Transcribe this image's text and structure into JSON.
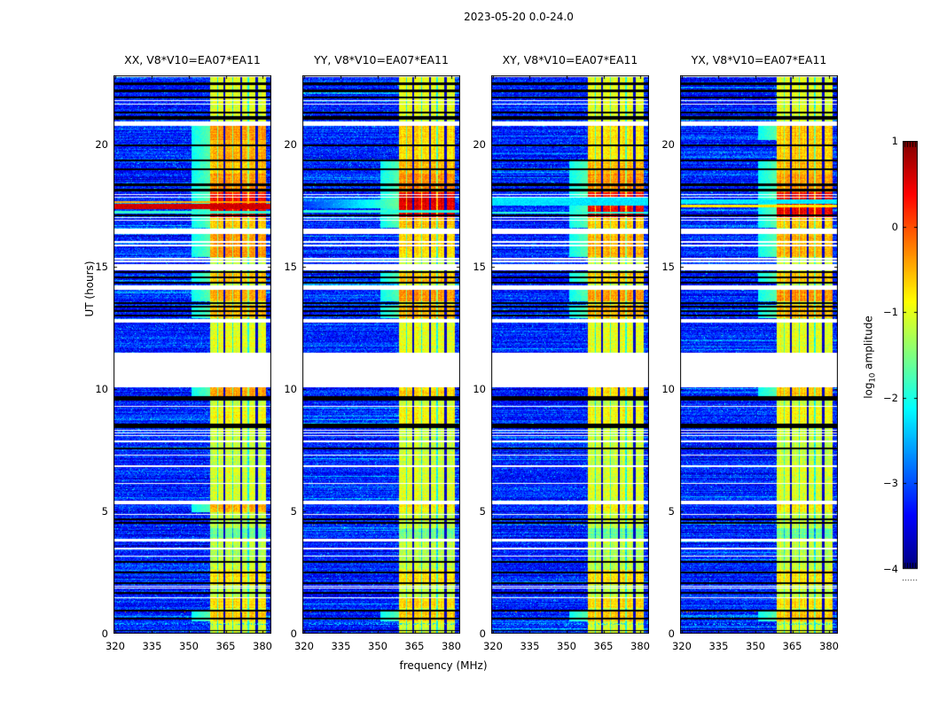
{
  "figure": {
    "title": "2023-05-20 0.0-24.0",
    "xlabel": "frequency (MHz)",
    "ylabel": "UT (hours)"
  },
  "panels": [
    {
      "pol": "XX",
      "title": "XX, V8*V10=EA07*EA11"
    },
    {
      "pol": "YY",
      "title": "YY, V8*V10=EA07*EA11"
    },
    {
      "pol": "XY",
      "title": "XY, V8*V10=EA07*EA11"
    },
    {
      "pol": "YX",
      "title": "YX, V8*V10=EA07*EA11"
    }
  ],
  "colorbar": {
    "label_pre": "log",
    "label_sub": "10",
    "label_post": " amplitude",
    "ticks": [
      "1",
      "0",
      "−1",
      "−2",
      "−3",
      "−4"
    ],
    "tick_values": [
      1,
      0,
      -1,
      -2,
      -3,
      -4
    ],
    "vmin": -4,
    "vmax": 1,
    "colormap": "jet"
  },
  "chart_data": {
    "type": "heatmap",
    "title": "2023-05-20 0.0-24.0",
    "xlabel": "frequency (MHz)",
    "ylabel": "UT (hours)",
    "value_label": "log10 amplitude",
    "colormap": "jet",
    "value_range": [
      -4,
      1
    ],
    "x_range_mhz": [
      319.3,
      383.6
    ],
    "x_ticks_mhz": [
      320,
      335,
      350,
      365,
      380
    ],
    "y_range_hours": [
      0,
      22.83
    ],
    "y_ticks_hours": [
      0,
      5,
      10,
      15,
      20
    ],
    "background_level": -3.35,
    "rfi_band": {
      "f_start_mhz": 358.6,
      "f_end_mhz": 381.4,
      "divider_freqs_mhz": [
        364.3,
        371.1,
        377.5
      ],
      "inner_line_freqs_mhz": [
        361.5,
        367.6,
        374.0
      ],
      "default_level": -1.15
    },
    "band_profile_common": [
      [
        21.2,
        22.83,
        -1.0
      ],
      [
        18.8,
        19.4,
        -0.55
      ],
      [
        18.35,
        18.8,
        -0.35
      ],
      [
        18.05,
        18.35,
        -0.3
      ],
      [
        16.6,
        17.05,
        -0.6
      ],
      [
        14.3,
        14.8,
        -0.6
      ],
      [
        12.9,
        13.45,
        -0.5
      ],
      [
        10.1,
        12.72,
        -1.0
      ],
      [
        8.6,
        9.3,
        -0.9
      ],
      [
        7.3,
        7.85,
        -1.15
      ],
      [
        5.5,
        6.8,
        -1.05
      ],
      [
        3.9,
        4.3,
        -1.6
      ],
      [
        3.0,
        3.5,
        -1.25
      ],
      [
        2.0,
        2.6,
        -0.75
      ],
      [
        1.05,
        1.45,
        -0.7
      ],
      [
        0.5,
        0.95,
        -0.6
      ],
      [
        0.0,
        0.5,
        -1.1
      ]
    ],
    "band_profile_by_panel": {
      "XX": [
        [
          20.2,
          20.75,
          -0.35
        ],
        [
          19.4,
          20.2,
          -0.5
        ],
        [
          17.05,
          18.05,
          0.35
        ],
        [
          15.4,
          16.34,
          -0.35
        ],
        [
          13.6,
          14.06,
          -0.45
        ],
        [
          9.71,
          10.07,
          -0.4
        ],
        [
          4.95,
          5.29,
          -0.5
        ]
      ],
      "YY": [
        [
          20.2,
          20.75,
          -0.7
        ],
        [
          19.4,
          20.2,
          -0.75
        ],
        [
          17.05,
          18.05,
          0.5
        ],
        [
          15.4,
          16.34,
          -0.7
        ],
        [
          13.6,
          14.06,
          -0.35
        ],
        [
          9.71,
          10.07,
          -0.7
        ],
        [
          4.95,
          5.29,
          -0.85
        ]
      ],
      "XY": [
        [
          20.2,
          20.75,
          -0.75
        ],
        [
          19.4,
          20.2,
          -0.8
        ],
        [
          17.05,
          18.05,
          0.3
        ],
        [
          15.4,
          16.34,
          -0.5
        ],
        [
          13.6,
          14.06,
          -0.4
        ],
        [
          9.71,
          10.07,
          -0.7
        ],
        [
          4.95,
          5.29,
          -0.85
        ]
      ],
      "YX": [
        [
          20.2,
          20.75,
          -0.6
        ],
        [
          19.4,
          20.2,
          -0.65
        ],
        [
          17.05,
          18.05,
          0.45
        ],
        [
          15.4,
          16.34,
          -0.5
        ],
        [
          13.6,
          14.06,
          -0.35
        ],
        [
          9.71,
          10.07,
          -0.6
        ],
        [
          4.95,
          5.29,
          -0.8
        ]
      ]
    },
    "events_by_panel": {
      "XX": [
        {
          "hours": [
            17.36,
            17.57
          ],
          "level": 0.6
        },
        {
          "hours": [
            17.61,
            17.68
          ],
          "level": -0.45
        },
        {
          "hours": [
            17.17,
            17.28
          ],
          "level": -1.9
        }
      ],
      "YY": [
        {
          "hours": [
            17.21,
            17.32
          ],
          "level": -1.95
        },
        {
          "hours": [
            17.39,
            17.75
          ],
          "type": "wedge"
        }
      ],
      "XY": [
        {
          "hours": [
            17.5,
            17.83
          ],
          "level": -2.25
        },
        {
          "hours": [
            17.17,
            17.25
          ],
          "level": -1.95
        }
      ],
      "YX": [
        {
          "hours": [
            17.43,
            17.54
          ],
          "level": -0.75
        },
        {
          "hours": [
            17.57,
            17.75
          ],
          "level": -2.2
        }
      ]
    },
    "flagged_rows_hours": [
      [
        22.43,
        22.54
      ],
      [
        22.14,
        22.25
      ],
      [
        21.88,
        21.96
      ],
      [
        21.27,
        21.34
      ],
      [
        21.01,
        21.16
      ],
      [
        19.93,
        20.0
      ],
      [
        19.31,
        19.38
      ],
      [
        18.95,
        19.02
      ],
      [
        18.3,
        18.41
      ],
      [
        18.08,
        18.19
      ],
      [
        17.07,
        17.14
      ],
      [
        14.75,
        14.82
      ],
      [
        14.53,
        14.6
      ],
      [
        14.31,
        14.38
      ],
      [
        13.48,
        13.55
      ],
      [
        13.33,
        13.41
      ],
      [
        13.15,
        13.22
      ],
      [
        12.97,
        13.04
      ],
      [
        9.53,
        9.71
      ],
      [
        8.41,
        8.59
      ],
      [
        7.54,
        7.61
      ],
      [
        4.64,
        4.71
      ],
      [
        4.49,
        4.57
      ],
      [
        2.9,
        2.97
      ],
      [
        2.46,
        2.54
      ],
      [
        2.03,
        2.1
      ],
      [
        1.63,
        1.7
      ],
      [
        0.91,
        0.98
      ],
      [
        0.58,
        0.65
      ],
      [
        0.11,
        0.15
      ]
    ],
    "data_gaps_hours": [
      [
        22.74,
        22.8
      ],
      [
        21.78,
        21.83
      ],
      [
        21.63,
        21.68
      ],
      [
        20.75,
        20.94
      ],
      [
        17.93,
        17.99
      ],
      [
        17.82,
        17.88
      ],
      [
        17.0,
        17.05
      ],
      [
        16.89,
        16.94
      ],
      [
        16.34,
        16.56
      ],
      [
        15.99,
        16.04
      ],
      [
        15.85,
        15.9
      ],
      [
        15.3,
        15.35
      ],
      [
        15.19,
        15.24
      ],
      [
        14.86,
        15.11
      ],
      [
        14.06,
        14.24
      ],
      [
        12.72,
        12.86
      ],
      [
        10.07,
        11.49
      ],
      [
        9.28,
        9.33
      ],
      [
        8.3,
        8.35
      ],
      [
        8.19,
        8.24
      ],
      [
        8.08,
        8.13
      ],
      [
        7.83,
        7.9
      ],
      [
        7.28,
        7.33
      ],
      [
        6.81,
        6.88
      ],
      [
        6.12,
        6.17
      ],
      [
        5.29,
        5.43
      ],
      [
        4.86,
        4.91
      ],
      [
        3.77,
        3.88
      ],
      [
        3.46,
        3.51
      ],
      [
        3.15,
        3.2
      ],
      [
        1.92,
        1.97
      ],
      [
        1.84,
        1.88
      ],
      [
        1.45,
        1.5
      ]
    ],
    "speckle_rows": [
      {
        "hour": 0.93,
        "level": -0.45,
        "density": 0.05
      },
      {
        "hour": 4.45,
        "level": -1.3,
        "density": 0.02
      },
      {
        "hour": 0.4,
        "level": -2.3,
        "density": 0.3
      }
    ]
  }
}
